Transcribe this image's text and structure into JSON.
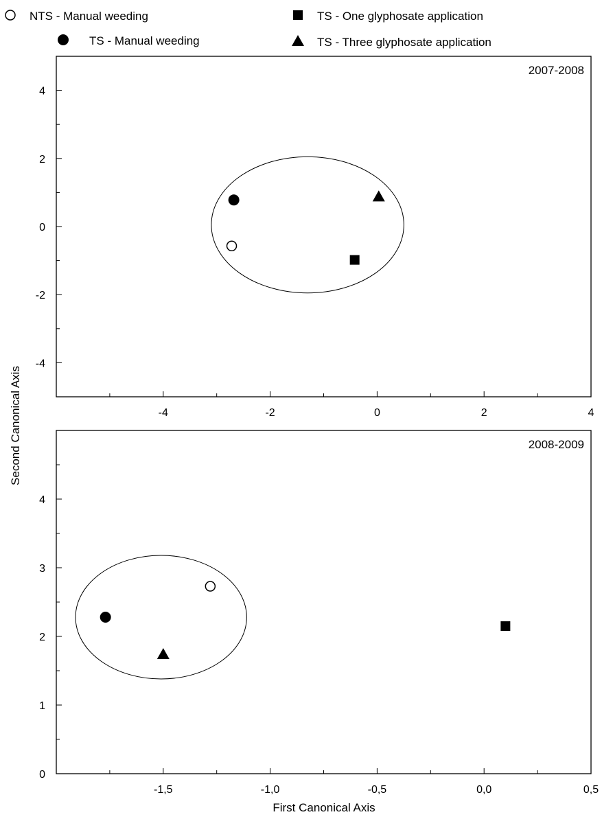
{
  "legend": {
    "items": [
      {
        "label": "NTS - Manual weeding",
        "marker": "circle-open"
      },
      {
        "label": "TS - One glyphosate application",
        "marker": "square-filled"
      },
      {
        "label": "TS - Manual weeding",
        "marker": "circle-filled"
      },
      {
        "label": "TS - Three glyphosate application",
        "marker": "triangle-filled"
      }
    ]
  },
  "chart_data": [
    {
      "type": "scatter",
      "title": "2007-2008",
      "xlim": [
        -6,
        4
      ],
      "ylim": [
        -5,
        5
      ],
      "xticks": [
        -4,
        -2,
        0,
        2,
        4
      ],
      "yticks": [
        -4,
        -2,
        0,
        2,
        4
      ],
      "xtick_labels": [
        "-4",
        "-2",
        "0",
        "2",
        "4"
      ],
      "ytick_labels": [
        "-4",
        "-2",
        "0",
        "2",
        "4"
      ],
      "grid": false,
      "series": [
        {
          "name": "NTS - Manual weeding",
          "marker": "circle-open",
          "x": [
            -2.72
          ],
          "y": [
            -0.57
          ]
        },
        {
          "name": "TS - Manual weeding",
          "marker": "circle-filled",
          "x": [
            -2.68
          ],
          "y": [
            0.78
          ]
        },
        {
          "name": "TS - One glyphosate application",
          "marker": "square-filled",
          "x": [
            -0.42
          ],
          "y": [
            -0.98
          ]
        },
        {
          "name": "TS - Three glyphosate application",
          "marker": "triangle-filled",
          "x": [
            0.03
          ],
          "y": [
            0.88
          ]
        }
      ],
      "ellipse": {
        "cx": -1.3,
        "cy": 0.05,
        "rx": 1.8,
        "ry": 2.0
      }
    },
    {
      "type": "scatter",
      "title": "2008-2009",
      "xlim": [
        -2.0,
        0.5
      ],
      "ylim": [
        0,
        5
      ],
      "xticks": [
        -1.5,
        -1.0,
        -0.5,
        0.0,
        0.5
      ],
      "yticks": [
        0,
        1,
        2,
        3,
        4
      ],
      "xtick_labels": [
        "-1,5",
        "-1,0",
        "-0,5",
        "0,0",
        "0,5"
      ],
      "ytick_labels": [
        "0",
        "1",
        "2",
        "3",
        "4"
      ],
      "xlabel": "First Canonical Axis",
      "ylabel": "Second Canonical Axis",
      "grid": false,
      "series": [
        {
          "name": "NTS - Manual weeding",
          "marker": "circle-open",
          "x": [
            -1.28
          ],
          "y": [
            2.73
          ]
        },
        {
          "name": "TS - Manual weeding",
          "marker": "circle-filled",
          "x": [
            -1.77
          ],
          "y": [
            2.28
          ]
        },
        {
          "name": "TS - One glyphosate application",
          "marker": "square-filled",
          "x": [
            0.1
          ],
          "y": [
            2.15
          ]
        },
        {
          "name": "TS - Three glyphosate application",
          "marker": "triangle-filled",
          "x": [
            -1.5
          ],
          "y": [
            1.74
          ]
        }
      ],
      "ellipse": {
        "cx": -1.51,
        "cy": 2.28,
        "rx": 0.4,
        "ry": 0.9
      }
    }
  ]
}
